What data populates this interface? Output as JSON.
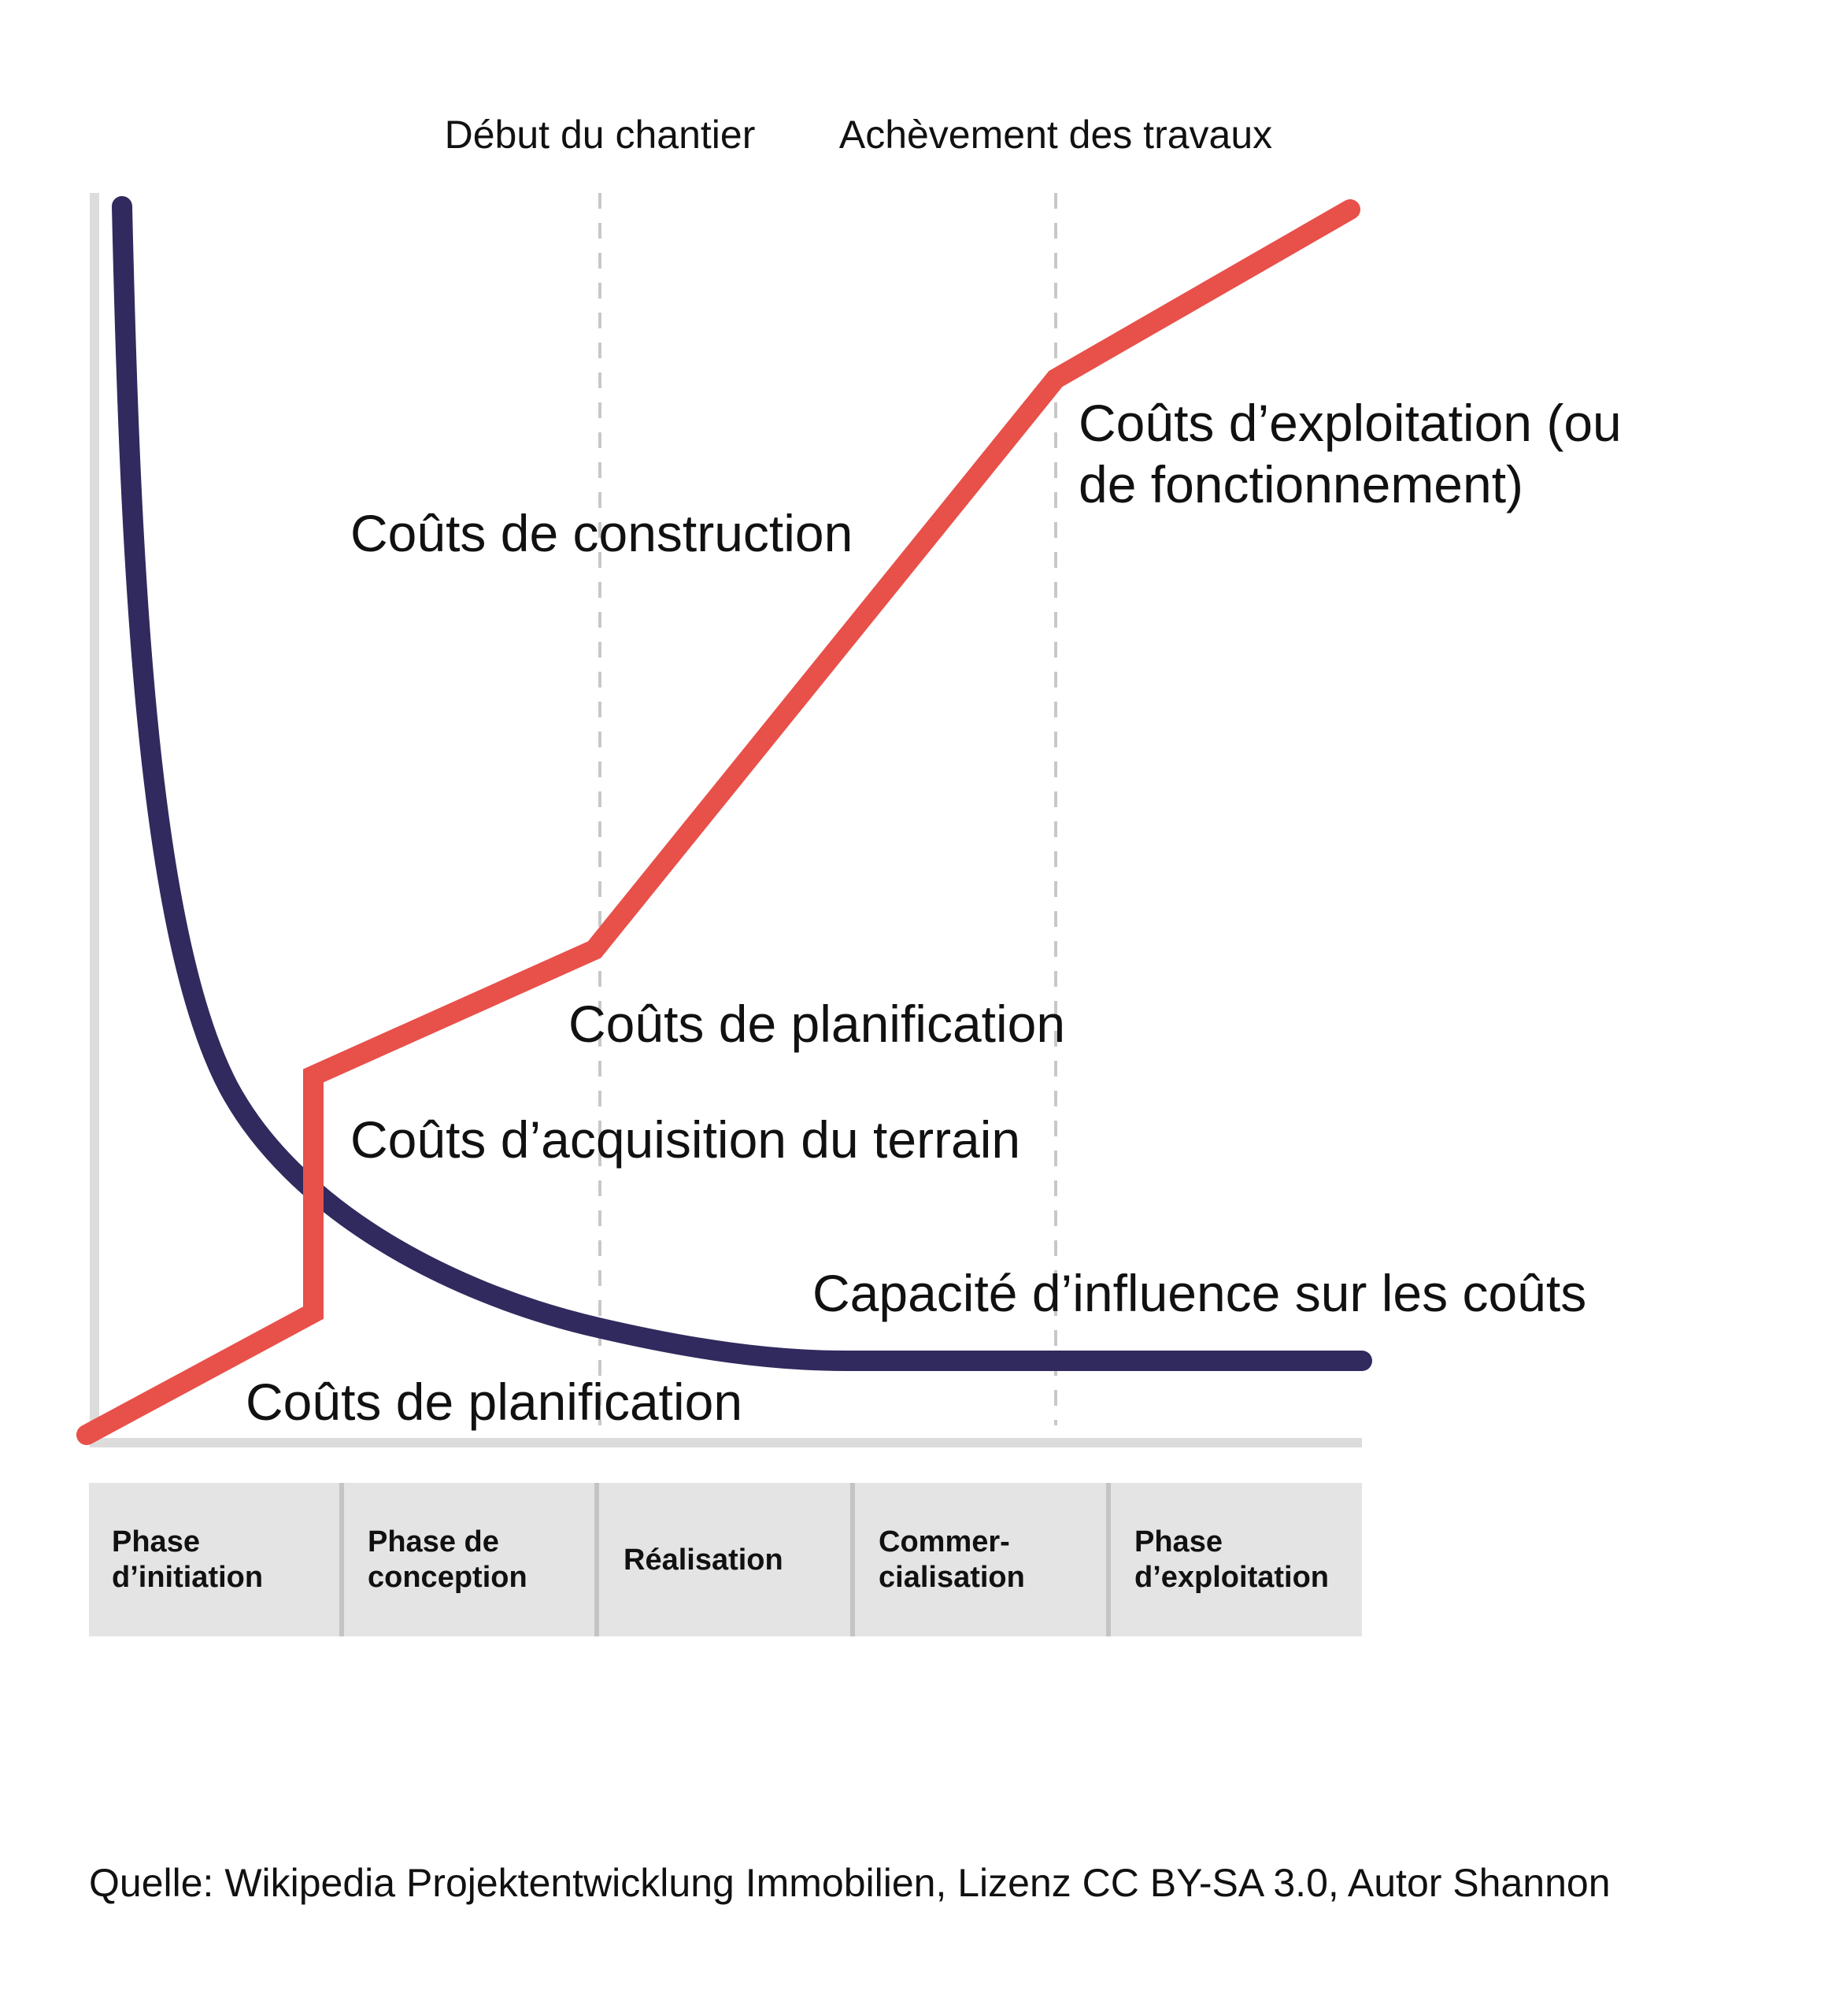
{
  "colors": {
    "cost_line": "#e8504a",
    "influence_line": "#302a5e",
    "axis": "#dcdcdc",
    "phase_box": "#e4e4e4",
    "phase_divider": "#c4c4c4",
    "milestone_line": "#c8c8c8"
  },
  "milestones": [
    "Début du chantier",
    "Achèvement des travaux"
  ],
  "annotations": {
    "construction": "Coûts de construction",
    "exploitation_line1": "Coûts d’exploitation (ou",
    "exploitation_line2": "de fonctionnement)",
    "planification_upper": "Coûts de planification",
    "acquisition": "Coûts d’acquisition du terrain",
    "influence": "Capacité d’influence sur les coûts",
    "planification_lower": "Coûts de planification"
  },
  "phases": [
    {
      "line1": "Phase",
      "line2": "d’initiation"
    },
    {
      "line1": "Phase de",
      "line2": "conception"
    },
    {
      "line1": "Réalisation",
      "line2": ""
    },
    {
      "line1": "Commer-",
      "line2": "cialisation"
    },
    {
      "line1": "Phase",
      "line2": "d’exploitation"
    }
  ],
  "source": "Quelle: Wikipedia Projektentwicklung Immobilien, Lizenz CC BY-SA 3.0, Autor Shannon"
}
